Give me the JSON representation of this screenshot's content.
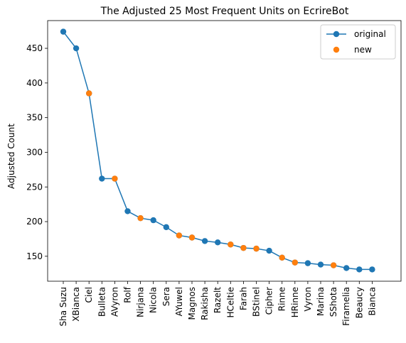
{
  "chart_data": {
    "type": "line",
    "title": "The Adjusted 25 Most Frequent Units on EcrireBot",
    "xlabel": "",
    "ylabel": "Adjusted Count",
    "categories": [
      "Sha Suzu",
      "XBianca",
      "Ciel",
      "Bulleta",
      "AVyron",
      "Rolf",
      "Nirjana",
      "Nicola",
      "Sera",
      "AYuwel",
      "Magnos",
      "Rakisha",
      "Razelt",
      "HCeltie",
      "Farah",
      "BStinel",
      "Cipher",
      "Rinne",
      "HRinne",
      "Vyron",
      "Marina",
      "SShota",
      "Firamelia",
      "Beaucy",
      "Bianca"
    ],
    "values": [
      474,
      450,
      385,
      262,
      262,
      215,
      205,
      202,
      192,
      180,
      177,
      172,
      170,
      167,
      162,
      161,
      158,
      148,
      141,
      140,
      138,
      137,
      133,
      131,
      131
    ],
    "new_flags": [
      false,
      false,
      true,
      false,
      true,
      false,
      true,
      false,
      false,
      true,
      true,
      false,
      false,
      true,
      true,
      true,
      false,
      true,
      true,
      false,
      false,
      true,
      false,
      false,
      false
    ],
    "ylim": [
      114,
      490
    ],
    "yticks": [
      150,
      200,
      250,
      300,
      350,
      400,
      450
    ],
    "grid": false,
    "legend_position": "top-right",
    "series": [
      {
        "name": "original",
        "color": "#1f77b4",
        "marker": "circle",
        "line": true
      },
      {
        "name": "new",
        "color": "#ff7f0e",
        "marker": "circle",
        "line": false
      }
    ]
  }
}
